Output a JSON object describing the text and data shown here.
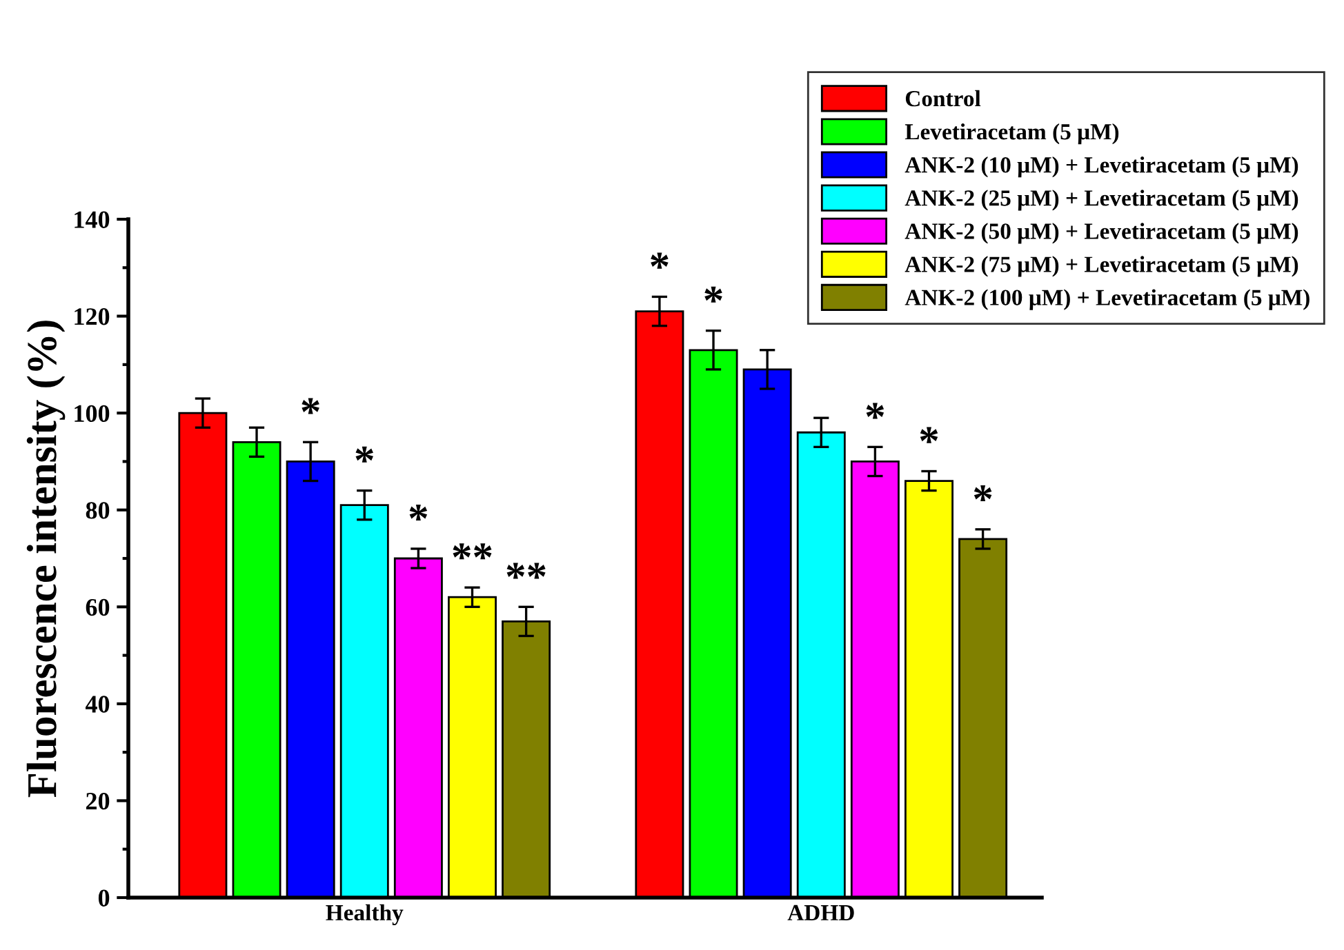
{
  "chart_data": {
    "type": "bar",
    "ylabel": "Fluorescence intensity (%)",
    "categories": [
      "Healthy",
      "ADHD"
    ],
    "ylim": [
      0,
      140
    ],
    "yticks": [
      0,
      20,
      40,
      60,
      80,
      100,
      120,
      140
    ],
    "grid": false,
    "legend": "top right",
    "series": [
      {
        "name": "Control",
        "color": "#ff0000",
        "values": [
          100,
          121
        ],
        "errors": [
          3,
          3
        ],
        "value_labels": [
          null,
          "*"
        ]
      },
      {
        "name": "Levetiracetam (5 μM)",
        "color": "#00ff00",
        "values": [
          94,
          113
        ],
        "errors": [
          3,
          4
        ],
        "value_labels": [
          null,
          "*"
        ]
      },
      {
        "name": "ANK-2 (10 μM) + Levetiracetam (5 μM)",
        "color": "#0000ff",
        "values": [
          90,
          109
        ],
        "errors": [
          4,
          4
        ],
        "value_labels": [
          "*",
          null
        ]
      },
      {
        "name": "ANK-2 (25 μM) + Levetiracetam (5 μM)",
        "color": "#00ffff",
        "values": [
          81,
          96
        ],
        "errors": [
          3,
          3
        ],
        "value_labels": [
          "*",
          null
        ]
      },
      {
        "name": "ANK-2 (50 μM) + Levetiracetam (5 μM)",
        "color": "#ff00ff",
        "values": [
          70,
          90
        ],
        "errors": [
          2,
          3
        ],
        "value_labels": [
          "*",
          "*"
        ]
      },
      {
        "name": "ANK-2 (75 μM) + Levetiracetam (5 μM)",
        "color": "#ffff00",
        "values": [
          62,
          86
        ],
        "errors": [
          2,
          2
        ],
        "value_labels": [
          "**",
          "*"
        ]
      },
      {
        "name": "ANK-2 (100 μM) + Levetiracetam (5 μM)",
        "color": "#808000",
        "values": [
          57,
          74
        ],
        "errors": [
          3,
          2
        ],
        "value_labels": [
          "**",
          "*"
        ]
      }
    ]
  }
}
